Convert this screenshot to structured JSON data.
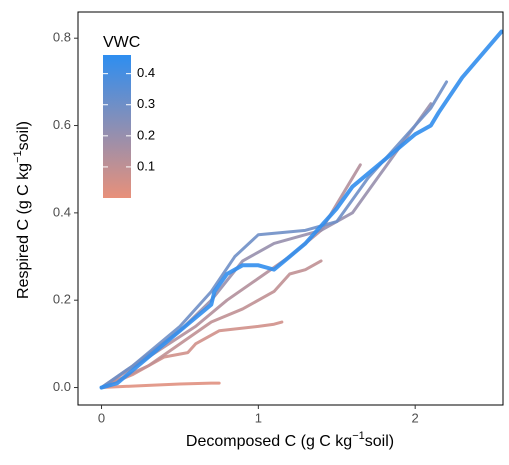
{
  "chart_data": {
    "type": "line",
    "x_label": {
      "text": "Decomposed C (g C kg",
      "sup": "−1",
      "suffix": "soil)"
    },
    "y_label": {
      "text": "Respired C (g C kg",
      "sup": "−1",
      "suffix": "soil)"
    },
    "xlim": [
      -0.15,
      2.56
    ],
    "ylim": [
      -0.04,
      0.86
    ],
    "xticks": [
      0,
      1,
      2
    ],
    "yticks": [
      {
        "value": 0,
        "label": "0.0"
      },
      {
        "value": 0.2,
        "label": "0.2"
      },
      {
        "value": 0.4,
        "label": "0.4"
      },
      {
        "value": 0.6,
        "label": "0.6"
      },
      {
        "value": 0.8,
        "label": "0.8"
      }
    ],
    "legend": {
      "title": "VWC",
      "range": [
        0,
        0.46
      ],
      "ticks": [
        0.1,
        0.2,
        0.3,
        0.4
      ],
      "low_color": "#e8907a",
      "high_color": "#2e8ef0"
    },
    "series": [
      {
        "vwc": 0.02,
        "x": [
          0,
          0.3,
          0.5,
          0.7,
          0.75
        ],
        "y": [
          0,
          0.005,
          0.008,
          0.01,
          0.01
        ]
      },
      {
        "vwc": 0.06,
        "x": [
          0,
          0.2,
          0.4,
          0.55,
          0.6,
          0.75,
          1.0,
          1.1,
          1.15
        ],
        "y": [
          0,
          0.03,
          0.07,
          0.08,
          0.1,
          0.13,
          0.14,
          0.145,
          0.15
        ]
      },
      {
        "vwc": 0.1,
        "x": [
          0,
          0.3,
          0.5,
          0.7,
          0.9,
          1.1,
          1.2,
          1.3,
          1.4
        ],
        "y": [
          0,
          0.05,
          0.1,
          0.15,
          0.18,
          0.22,
          0.26,
          0.27,
          0.29
        ]
      },
      {
        "vwc": 0.13,
        "x": [
          0,
          0.3,
          0.6,
          0.8,
          1.0,
          1.2,
          1.4,
          1.5,
          1.6,
          1.65
        ],
        "y": [
          0,
          0.07,
          0.14,
          0.2,
          0.25,
          0.3,
          0.36,
          0.42,
          0.48,
          0.51
        ]
      },
      {
        "vwc": 0.2,
        "x": [
          0,
          0.2,
          0.5,
          0.7,
          0.9,
          1.1,
          1.4,
          1.6,
          1.8,
          2.0,
          2.1
        ],
        "y": [
          0,
          0.05,
          0.13,
          0.2,
          0.29,
          0.33,
          0.36,
          0.4,
          0.5,
          0.6,
          0.65
        ]
      },
      {
        "vwc": 0.3,
        "x": [
          0,
          0.2,
          0.5,
          0.7,
          0.85,
          1.0,
          1.3,
          1.5,
          1.7,
          1.9,
          2.1,
          2.2
        ],
        "y": [
          0,
          0.05,
          0.14,
          0.22,
          0.3,
          0.35,
          0.36,
          0.38,
          0.48,
          0.56,
          0.64,
          0.7
        ]
      },
      {
        "vwc": 0.45,
        "x": [
          0,
          0.1,
          0.3,
          0.5,
          0.7,
          0.72,
          0.8,
          0.9,
          1.0,
          1.1,
          1.2,
          1.3,
          1.4,
          1.5,
          1.6,
          1.7,
          1.8,
          1.9,
          2.0,
          2.1,
          2.15,
          2.3,
          2.55
        ],
        "y": [
          0,
          0.01,
          0.07,
          0.13,
          0.19,
          0.22,
          0.26,
          0.28,
          0.28,
          0.27,
          0.3,
          0.33,
          0.37,
          0.41,
          0.46,
          0.49,
          0.52,
          0.55,
          0.58,
          0.6,
          0.63,
          0.71,
          0.815
        ]
      }
    ]
  }
}
